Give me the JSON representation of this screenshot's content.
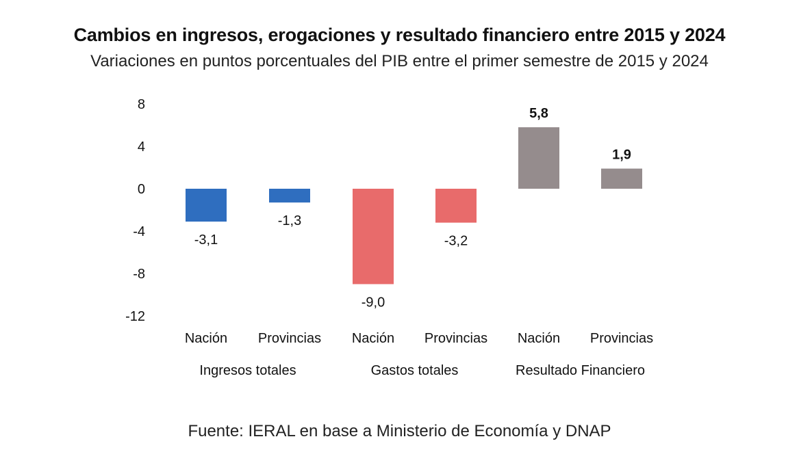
{
  "title": "Cambios en ingresos, erogaciones y resultado financiero entre 2015 y 2024",
  "subtitle": "Variaciones en puntos porcentuales del PIB entre el primer semestre de 2015 y 2024",
  "source": "Fuente: IERAL en base a Ministerio de Economía y DNAP",
  "chart_data": {
    "type": "bar",
    "ylim": [
      -12,
      8
    ],
    "yticks": [
      8,
      4,
      0,
      -4,
      -8,
      -12
    ],
    "grid": false,
    "legend": "none",
    "bars": [
      {
        "group": "Ingresos totales",
        "category": "Nación",
        "value": -3.1,
        "label": "-3,1",
        "color": "#2f6ebf",
        "bold": false
      },
      {
        "group": "Ingresos totales",
        "category": "Provincias",
        "value": -1.3,
        "label": "-1,3",
        "color": "#2f6ebf",
        "bold": false
      },
      {
        "group": "Gastos totales",
        "category": "Nación",
        "value": -9.0,
        "label": "-9,0",
        "color": "#e86b6b",
        "bold": false
      },
      {
        "group": "Gastos totales",
        "category": "Provincias",
        "value": -3.2,
        "label": "-3,2",
        "color": "#e86b6b",
        "bold": false
      },
      {
        "group": "Resultado Financiero",
        "category": "Nación",
        "value": 5.8,
        "label": "5,8",
        "color": "#958c8d",
        "bold": true
      },
      {
        "group": "Resultado Financiero",
        "category": "Provincias",
        "value": 1.9,
        "label": "1,9",
        "color": "#958c8d",
        "bold": true
      }
    ],
    "groups": [
      "Ingresos totales",
      "Gastos totales",
      "Resultado Financiero"
    ]
  }
}
